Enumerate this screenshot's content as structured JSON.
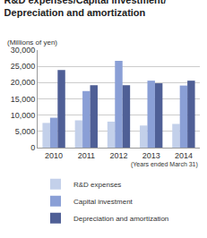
{
  "chart_data": {
    "type": "bar",
    "title": "R&D expenses/Capital investment/ Depreciation and amortization",
    "ylabel": "(Millions of yen)",
    "xlabel": "(Years ended March 31)",
    "categories": [
      "2010",
      "2011",
      "2012",
      "2013",
      "2014"
    ],
    "series": [
      {
        "name": "R&D expenses",
        "color": "#c3d0ea",
        "values": [
          7600,
          8400,
          8000,
          6800,
          7300
        ]
      },
      {
        "name": "Capital investment",
        "color": "#8a9fd6",
        "values": [
          9200,
          17400,
          26700,
          20600,
          19100
        ]
      },
      {
        "name": "Depreciation and amortization",
        "color": "#4f5f96",
        "values": [
          23900,
          19200,
          19200,
          19800,
          20600
        ]
      }
    ],
    "ylim": [
      0,
      30000
    ],
    "yticks": [
      0,
      {
        "value": 5000,
        "label": "5,000"
      },
      {
        "value": 10000,
        "label": "10,000"
      },
      {
        "value": 15000,
        "label": "15,000"
      },
      {
        "value": 20000,
        "label": "20,000"
      },
      {
        "value": 25000,
        "label": "25,000"
      },
      {
        "value": 30000,
        "label": "30,000"
      }
    ],
    "grid": true,
    "legend": "bottom"
  }
}
